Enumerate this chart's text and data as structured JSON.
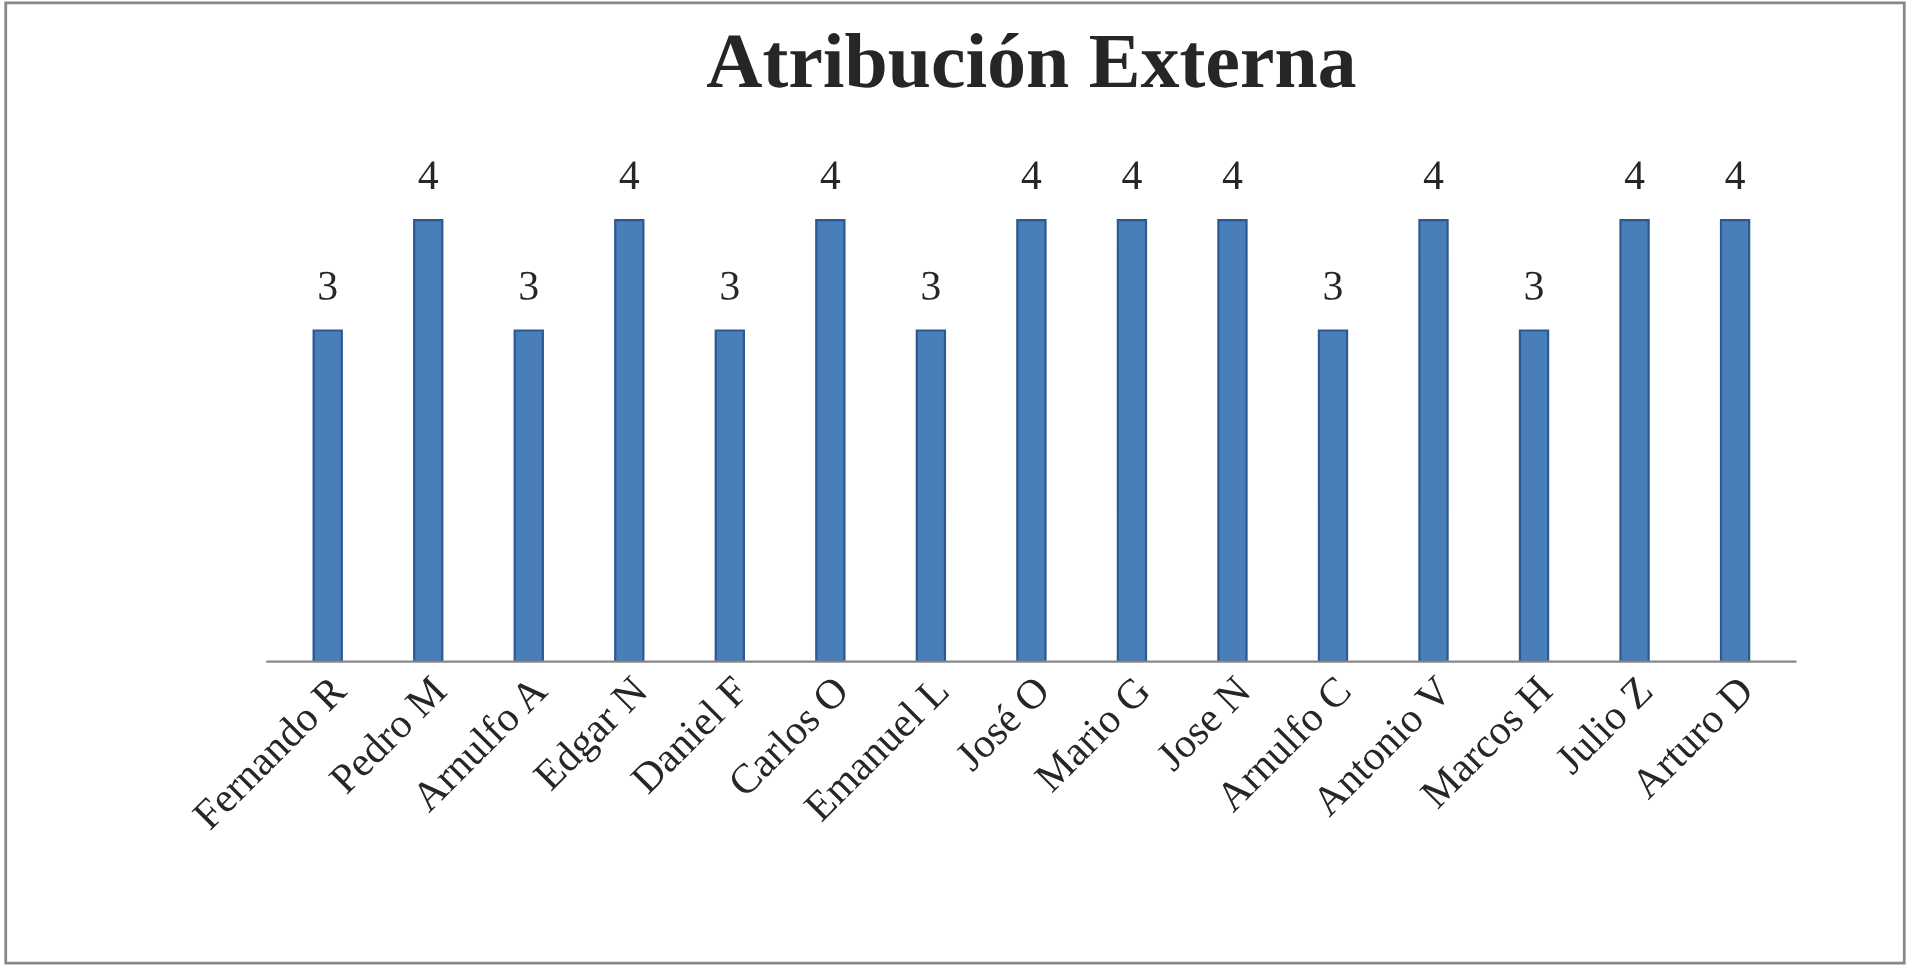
{
  "chart_data": {
    "type": "bar",
    "title": "Atribución Externa",
    "categories": [
      "Fernando R",
      "Pedro M",
      "Arnulfo A",
      "Edgar N",
      "Daniel F",
      "Carlos O",
      "Emanuel L",
      "José O",
      "Mario G",
      "Jose N",
      "Arnulfo C",
      "Antonio V",
      "Marcos H",
      "Julio Z",
      "Arturo D"
    ],
    "values": [
      3,
      4,
      3,
      4,
      3,
      4,
      3,
      4,
      4,
      4,
      3,
      4,
      3,
      4,
      4
    ],
    "color": "#4a7ebb",
    "data_labels": true,
    "grid": false,
    "legend": false
  }
}
